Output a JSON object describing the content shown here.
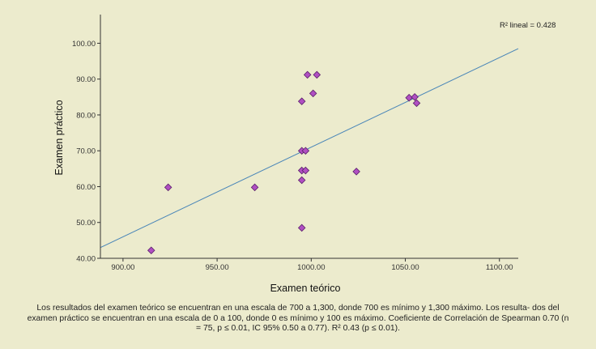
{
  "chart_data": {
    "type": "scatter",
    "xlabel": "Examen teórico",
    "ylabel": "Examen práctico",
    "xlim": [
      888,
      1110
    ],
    "ylim": [
      40,
      108
    ],
    "x_ticks": [
      900,
      950,
      1000,
      1050,
      1100
    ],
    "x_tick_labels": [
      "900.00",
      "950.00",
      "1000.00",
      "1050.00",
      "1100.00"
    ],
    "y_ticks": [
      40,
      50,
      60,
      70,
      80,
      90,
      100
    ],
    "y_tick_labels": [
      "40.00",
      "50.00",
      "60.00",
      "70.00",
      "80.00",
      "90.00",
      "100.00"
    ],
    "grid": false,
    "points": [
      {
        "x": 915,
        "y": 42.2
      },
      {
        "x": 924,
        "y": 59.8
      },
      {
        "x": 970,
        "y": 59.8
      },
      {
        "x": 995,
        "y": 48.5
      },
      {
        "x": 995,
        "y": 61.8
      },
      {
        "x": 995,
        "y": 64.5
      },
      {
        "x": 997,
        "y": 64.5
      },
      {
        "x": 995,
        "y": 70.0
      },
      {
        "x": 997,
        "y": 70.0
      },
      {
        "x": 995,
        "y": 83.8
      },
      {
        "x": 998,
        "y": 91.2
      },
      {
        "x": 1001,
        "y": 86.0
      },
      {
        "x": 1003,
        "y": 91.2
      },
      {
        "x": 1024,
        "y": 64.2
      },
      {
        "x": 1052,
        "y": 84.8
      },
      {
        "x": 1055,
        "y": 85.0
      },
      {
        "x": 1056,
        "y": 83.3
      }
    ],
    "fit_line": {
      "x": [
        888,
        1110
      ],
      "y": [
        43.0,
        98.5
      ]
    },
    "r2_label": "R² lineal = 0.428",
    "colors": {
      "marker": "#b04fc2",
      "marker_edge": "#5a1f6a",
      "line": "#4a86b8",
      "axis": "#333333"
    }
  },
  "caption": "Los resultados del examen teórico se encuentran en una escala de 700 a 1,300, donde 700 es mínimo y 1,300 máximo. Los resulta- dos del examen práctico se encuentran en una escala de 0 a 100, donde 0 es mínimo y 100 es máximo. Coeficiente de Correlación de Spearman 0.70 (n = 75, p ≤ 0.01, IC 95% 0.50 a 0.77). R² 0.43 (p ≤ 0.01)."
}
